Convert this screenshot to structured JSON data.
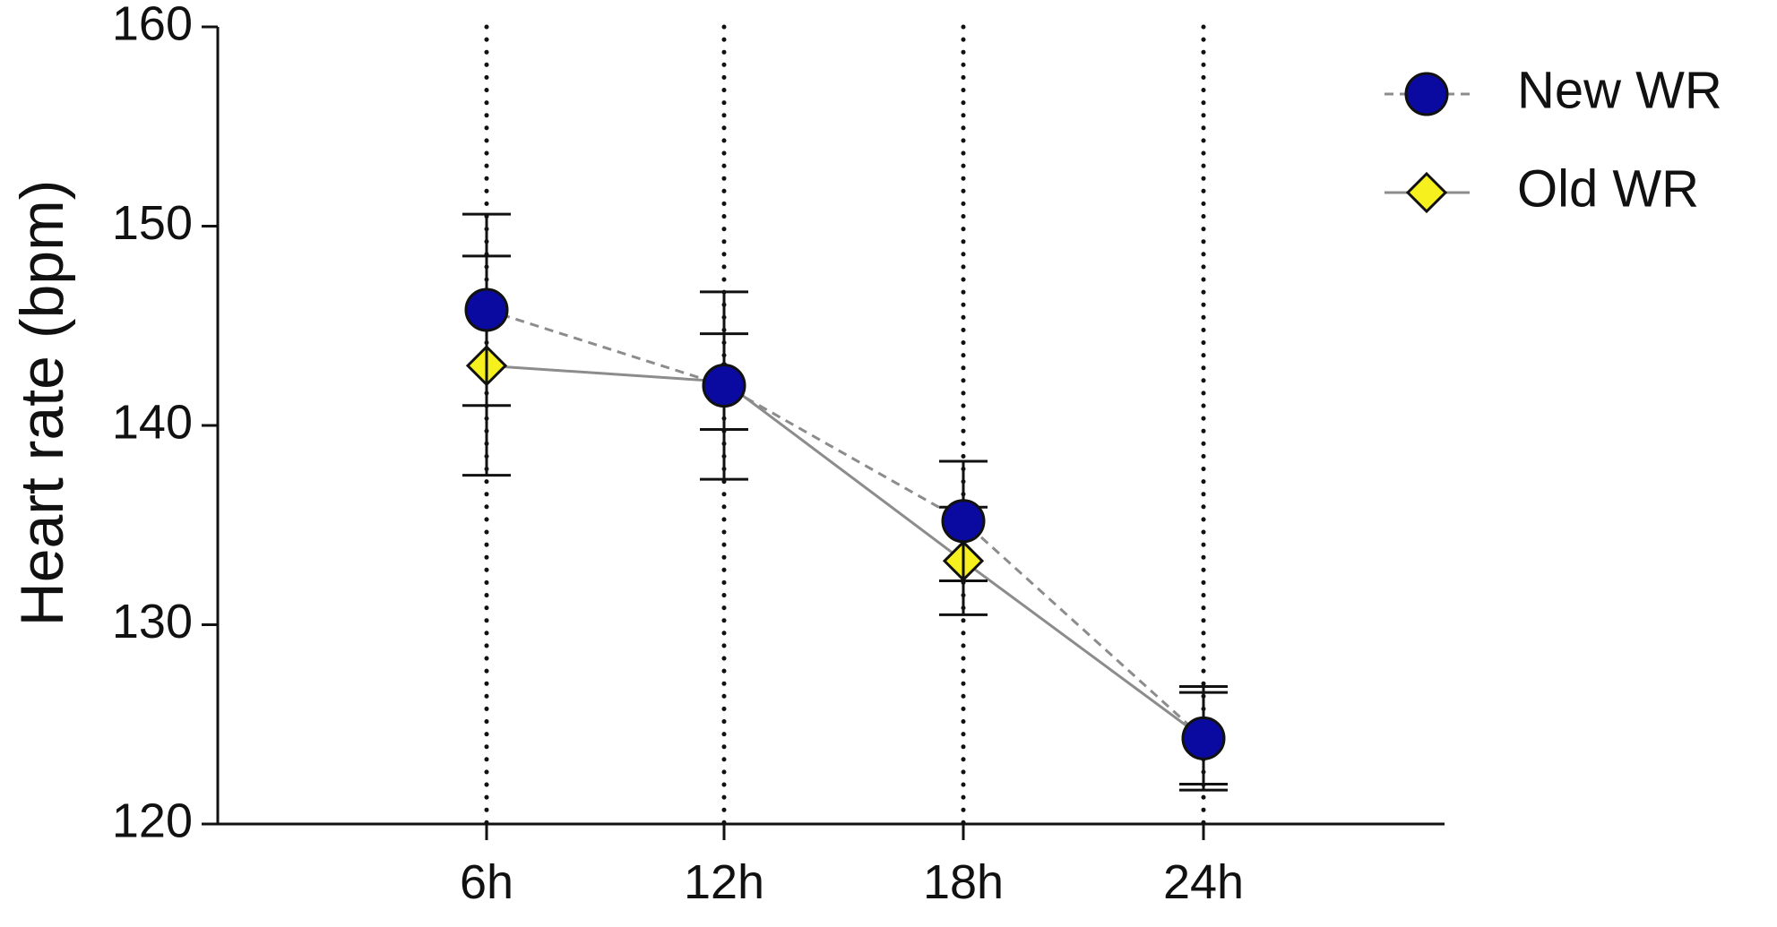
{
  "chart_data": {
    "type": "line",
    "ylabel": "Heart rate  (bpm)",
    "xlabel": "",
    "categories": [
      "6h",
      "12h",
      "18h",
      "24h"
    ],
    "ylim": [
      120,
      160
    ],
    "yticks": [
      120,
      130,
      140,
      150,
      160
    ],
    "vertical_reference_lines": "dotted at each category",
    "legend_position": "top-right",
    "series": [
      {
        "name": "New WR",
        "marker": "circle",
        "line_style": "dashed",
        "marker_color": "#0a0aa0",
        "line_color": "#8c8c8c",
        "values": [
          145.8,
          142.0,
          135.2,
          124.3
        ],
        "error": [
          4.8,
          4.7,
          3.0,
          2.6
        ]
      },
      {
        "name": "Old WR",
        "marker": "diamond",
        "line_style": "solid",
        "marker_color": "#f5f01e",
        "line_color": "#8c8c8c",
        "values": [
          143.0,
          142.2,
          133.2,
          124.3
        ],
        "error": [
          5.5,
          2.4,
          2.7,
          2.3
        ]
      }
    ]
  }
}
